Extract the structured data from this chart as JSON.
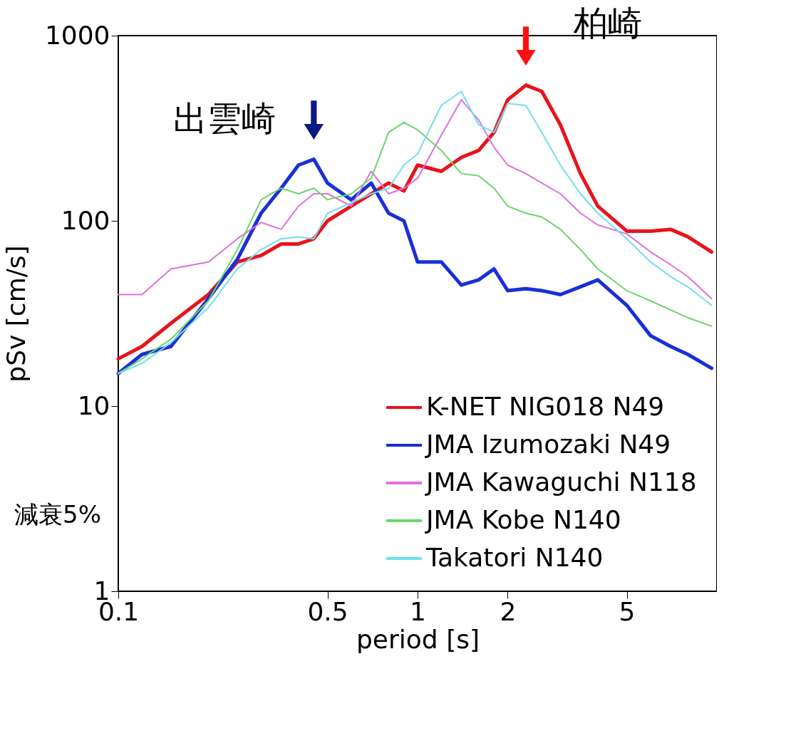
{
  "chart_data": {
    "type": "line",
    "xlabel": "period [s]",
    "ylabel": "pSv [cm/s]",
    "log": "xy",
    "grid": false,
    "legend": "bottom right",
    "x": [
      0.1,
      0.12,
      0.15,
      0.2,
      0.25,
      0.3,
      0.35,
      0.4,
      0.45,
      0.5,
      0.6,
      0.7,
      0.8,
      0.9,
      1,
      1.2,
      1.4,
      1.6,
      1.8,
      2,
      2.3,
      2.6,
      3,
      3.5,
      4,
      5,
      6,
      7,
      8,
      9.6
    ],
    "xlim": [
      0.1,
      10
    ],
    "xticks": [
      0.1,
      0.5,
      1,
      2,
      5
    ],
    "ylim": [
      1,
      1000
    ],
    "yticks": [
      1,
      10,
      100,
      1000
    ],
    "series": [
      {
        "name": "K-NET NIG018 N49",
        "color": "#e8141c",
        "values": [
          18,
          21,
          28,
          40,
          60,
          65,
          75,
          75,
          80,
          100,
          120,
          140,
          160,
          145,
          200,
          185,
          220,
          240,
          300,
          450,
          540,
          500,
          330,
          180,
          120,
          88,
          88,
          90,
          82,
          68
        ]
      },
      {
        "name": "JMA Izumozaki N49",
        "color": "#1a2fd8",
        "values": [
          15,
          19,
          21,
          38,
          62,
          110,
          150,
          200,
          215,
          160,
          130,
          160,
          110,
          100,
          60,
          60,
          45,
          48,
          55,
          42,
          43,
          42,
          40,
          44,
          48,
          35,
          24,
          21,
          19,
          16
        ]
      },
      {
        "name": "JMA Kawaguchi N118",
        "color": "#e070e0",
        "values": [
          40,
          40,
          55,
          60,
          80,
          98,
          90,
          120,
          140,
          140,
          120,
          185,
          140,
          150,
          170,
          290,
          450,
          350,
          250,
          200,
          180,
          160,
          140,
          110,
          95,
          85,
          68,
          58,
          50,
          38
        ]
      },
      {
        "name": "JMA Kobe N140",
        "color": "#6bd66b",
        "values": [
          15,
          18,
          23,
          37,
          70,
          130,
          150,
          140,
          150,
          130,
          140,
          170,
          300,
          340,
          310,
          240,
          180,
          175,
          150,
          120,
          110,
          105,
          90,
          70,
          55,
          42,
          37,
          33,
          30,
          27
        ]
      },
      {
        "name": "Takatori N140",
        "color": "#6fe0ea",
        "values": [
          15,
          17,
          22,
          34,
          55,
          70,
          80,
          82,
          80,
          110,
          125,
          140,
          150,
          200,
          230,
          420,
          500,
          330,
          300,
          430,
          420,
          300,
          200,
          140,
          110,
          80,
          60,
          50,
          44,
          35
        ]
      }
    ],
    "annotations": [
      {
        "text": "出雲崎",
        "x": 0.45,
        "y": 215
      },
      {
        "text": "柏崎",
        "x": 2.3,
        "y": 540
      },
      "減衰5%"
    ]
  }
}
